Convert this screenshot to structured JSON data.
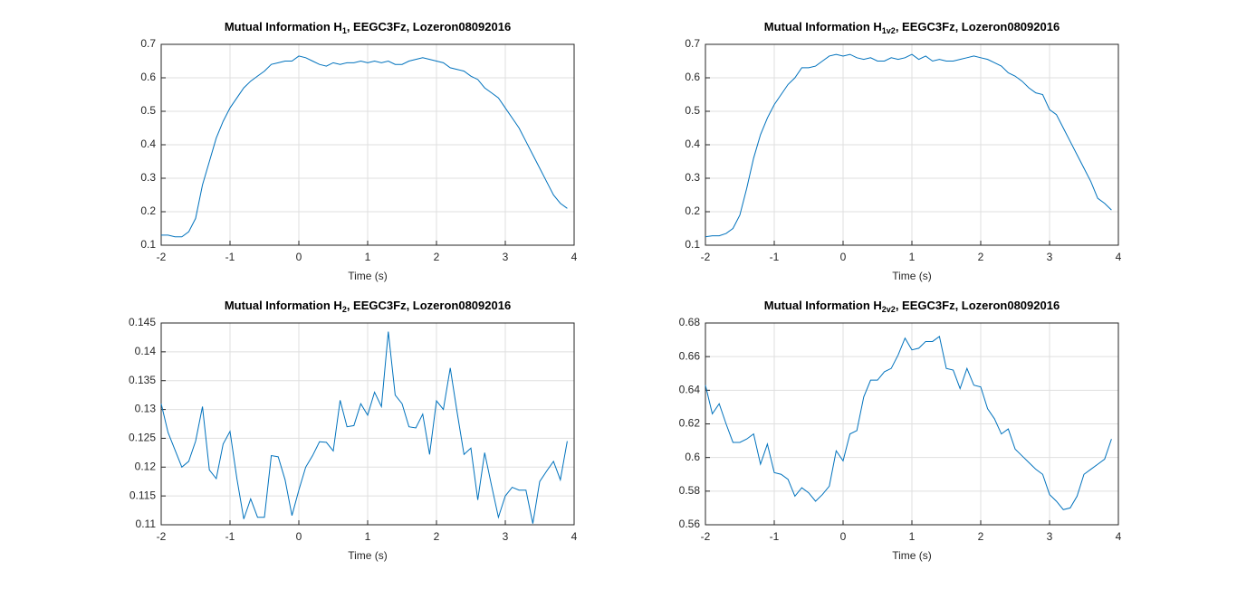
{
  "chart_data": [
    {
      "type": "line",
      "title": {
        "main": "Mutual Information H",
        "sub": "1",
        "rest": ", EEGC3Fz, Lozeron08092016"
      },
      "x_label": "Time (s)",
      "x": [
        -2,
        -1.9,
        -1.8,
        -1.7,
        -1.6,
        -1.5,
        -1.4,
        -1.3,
        -1.2,
        -1.1,
        -1,
        -0.9,
        -0.8,
        -0.7,
        -0.6,
        -0.5,
        -0.4,
        -0.3,
        -0.2,
        -0.1,
        0,
        0.1,
        0.2,
        0.3,
        0.4,
        0.5,
        0.6,
        0.7,
        0.8,
        0.9,
        1,
        1.1,
        1.2,
        1.3,
        1.4,
        1.5,
        1.6,
        1.7,
        1.8,
        1.9,
        2,
        2.1,
        2.2,
        2.3,
        2.4,
        2.5,
        2.6,
        2.7,
        2.8,
        2.9,
        3,
        3.1,
        3.2,
        3.3,
        3.4,
        3.5,
        3.6,
        3.7,
        3.8,
        3.9
      ],
      "values": [
        0.13,
        0.13,
        0.125,
        0.125,
        0.14,
        0.18,
        0.28,
        0.35,
        0.42,
        0.47,
        0.51,
        0.54,
        0.57,
        0.59,
        0.605,
        0.62,
        0.64,
        0.645,
        0.65,
        0.65,
        0.665,
        0.66,
        0.65,
        0.64,
        0.635,
        0.645,
        0.64,
        0.645,
        0.645,
        0.65,
        0.645,
        0.65,
        0.645,
        0.65,
        0.64,
        0.64,
        0.65,
        0.655,
        0.66,
        0.655,
        0.65,
        0.645,
        0.63,
        0.625,
        0.62,
        0.605,
        0.595,
        0.57,
        0.555,
        0.54,
        0.51,
        0.48,
        0.45,
        0.41,
        0.37,
        0.33,
        0.29,
        0.25,
        0.225,
        0.21
      ],
      "color": "#0072bd",
      "xlim": [
        -2,
        4
      ],
      "xticks": [
        -2,
        -1,
        0,
        1,
        2,
        3,
        4
      ],
      "ylim": [
        0.1,
        0.7
      ],
      "yticks": [
        0.1,
        0.2,
        0.3,
        0.4,
        0.5,
        0.6,
        0.7
      ],
      "grid": true
    },
    {
      "type": "line",
      "title": {
        "main": "Mutual Information H",
        "sub": "1v2",
        "rest": ", EEGC3Fz, Lozeron08092016"
      },
      "x_label": "Time (s)",
      "x": [
        -2,
        -1.9,
        -1.8,
        -1.7,
        -1.6,
        -1.5,
        -1.4,
        -1.3,
        -1.2,
        -1.1,
        -1,
        -0.9,
        -0.8,
        -0.7,
        -0.6,
        -0.5,
        -0.4,
        -0.3,
        -0.2,
        -0.1,
        0,
        0.1,
        0.2,
        0.3,
        0.4,
        0.5,
        0.6,
        0.7,
        0.8,
        0.9,
        1,
        1.1,
        1.2,
        1.3,
        1.4,
        1.5,
        1.6,
        1.7,
        1.8,
        1.9,
        2,
        2.1,
        2.2,
        2.3,
        2.4,
        2.5,
        2.6,
        2.7,
        2.8,
        2.9,
        3,
        3.1,
        3.2,
        3.3,
        3.4,
        3.5,
        3.6,
        3.7,
        3.8,
        3.9
      ],
      "values": [
        0.125,
        0.128,
        0.128,
        0.135,
        0.15,
        0.19,
        0.27,
        0.36,
        0.43,
        0.48,
        0.52,
        0.55,
        0.58,
        0.6,
        0.63,
        0.63,
        0.635,
        0.65,
        0.665,
        0.67,
        0.665,
        0.67,
        0.66,
        0.655,
        0.66,
        0.65,
        0.65,
        0.66,
        0.655,
        0.66,
        0.67,
        0.655,
        0.665,
        0.65,
        0.655,
        0.65,
        0.65,
        0.655,
        0.66,
        0.665,
        0.66,
        0.655,
        0.645,
        0.635,
        0.615,
        0.605,
        0.59,
        0.57,
        0.555,
        0.55,
        0.505,
        0.49,
        0.45,
        0.41,
        0.37,
        0.33,
        0.29,
        0.24,
        0.225,
        0.205
      ],
      "color": "#0072bd",
      "xlim": [
        -2,
        4
      ],
      "xticks": [
        -2,
        -1,
        0,
        1,
        2,
        3,
        4
      ],
      "ylim": [
        0.1,
        0.7
      ],
      "yticks": [
        0.1,
        0.2,
        0.3,
        0.4,
        0.5,
        0.6,
        0.7
      ],
      "grid": true
    },
    {
      "type": "line",
      "title": {
        "main": "Mutual Information H",
        "sub": "2",
        "rest": ", EEGC3Fz, Lozeron08092016"
      },
      "x_label": "Time (s)",
      "x": [
        -2,
        -1.9,
        -1.8,
        -1.7,
        -1.6,
        -1.5,
        -1.4,
        -1.3,
        -1.2,
        -1.1,
        -1,
        -0.9,
        -0.8,
        -0.7,
        -0.6,
        -0.5,
        -0.4,
        -0.3,
        -0.2,
        -0.1,
        0,
        0.1,
        0.2,
        0.3,
        0.4,
        0.5,
        0.6,
        0.7,
        0.8,
        0.9,
        1,
        1.1,
        1.2,
        1.3,
        1.4,
        1.5,
        1.6,
        1.7,
        1.8,
        1.9,
        2,
        2.1,
        2.2,
        2.3,
        2.4,
        2.5,
        2.6,
        2.7,
        2.8,
        2.9,
        3,
        3.1,
        3.2,
        3.3,
        3.4,
        3.5,
        3.6,
        3.7,
        3.8,
        3.9
      ],
      "values": [
        0.131,
        0.126,
        0.123,
        0.12,
        0.121,
        0.1245,
        0.1305,
        0.1195,
        0.118,
        0.124,
        0.1262,
        0.118,
        0.111,
        0.1145,
        0.1113,
        0.1113,
        0.122,
        0.1218,
        0.1178,
        0.1116,
        0.116,
        0.12,
        0.122,
        0.1244,
        0.1243,
        0.1228,
        0.1316,
        0.127,
        0.1272,
        0.131,
        0.129,
        0.133,
        0.1305,
        0.1435,
        0.1325,
        0.131,
        0.127,
        0.1268,
        0.1292,
        0.1222,
        0.1315,
        0.13,
        0.1372,
        0.1295,
        0.1222,
        0.1233,
        0.1143,
        0.1225,
        0.1168,
        0.1113,
        0.115,
        0.1165,
        0.116,
        0.116,
        0.1102,
        0.1175,
        0.1193,
        0.121,
        0.1178,
        0.1245
      ],
      "color": "#0072bd",
      "xlim": [
        -2,
        4
      ],
      "xticks": [
        -2,
        -1,
        0,
        1,
        2,
        3,
        4
      ],
      "ylim": [
        0.11,
        0.145
      ],
      "yticks": [
        0.11,
        0.115,
        0.12,
        0.125,
        0.13,
        0.135,
        0.14,
        0.145
      ],
      "grid": true
    },
    {
      "type": "line",
      "title": {
        "main": "Mutual Information H",
        "sub": "2v2",
        "rest": ", EEGC3Fz, Lozeron08092016"
      },
      "x_label": "Time (s)",
      "x": [
        -2,
        -1.9,
        -1.8,
        -1.7,
        -1.6,
        -1.5,
        -1.4,
        -1.3,
        -1.2,
        -1.1,
        -1,
        -0.9,
        -0.8,
        -0.7,
        -0.6,
        -0.5,
        -0.4,
        -0.3,
        -0.2,
        -0.1,
        0,
        0.1,
        0.2,
        0.3,
        0.4,
        0.5,
        0.6,
        0.7,
        0.8,
        0.9,
        1,
        1.1,
        1.2,
        1.3,
        1.4,
        1.5,
        1.6,
        1.7,
        1.8,
        1.9,
        2,
        2.1,
        2.2,
        2.3,
        2.4,
        2.5,
        2.6,
        2.7,
        2.8,
        2.9,
        3,
        3.1,
        3.2,
        3.3,
        3.4,
        3.5,
        3.6,
        3.7,
        3.8,
        3.9
      ],
      "values": [
        0.643,
        0.626,
        0.632,
        0.62,
        0.609,
        0.609,
        0.611,
        0.614,
        0.596,
        0.608,
        0.591,
        0.59,
        0.587,
        0.577,
        0.582,
        0.579,
        0.574,
        0.578,
        0.583,
        0.604,
        0.598,
        0.614,
        0.616,
        0.636,
        0.646,
        0.646,
        0.651,
        0.653,
        0.661,
        0.671,
        0.664,
        0.665,
        0.669,
        0.669,
        0.672,
        0.653,
        0.652,
        0.641,
        0.653,
        0.643,
        0.642,
        0.629,
        0.623,
        0.614,
        0.617,
        0.605,
        0.601,
        0.597,
        0.593,
        0.59,
        0.578,
        0.574,
        0.569,
        0.57,
        0.577,
        0.59,
        0.593,
        0.596,
        0.599,
        0.611
      ],
      "color": "#0072bd",
      "xlim": [
        -2,
        4
      ],
      "xticks": [
        -2,
        -1,
        0,
        1,
        2,
        3,
        4
      ],
      "ylim": [
        0.56,
        0.68
      ],
      "yticks": [
        0.56,
        0.58,
        0.6,
        0.62,
        0.64,
        0.66,
        0.68
      ],
      "grid": true
    }
  ]
}
